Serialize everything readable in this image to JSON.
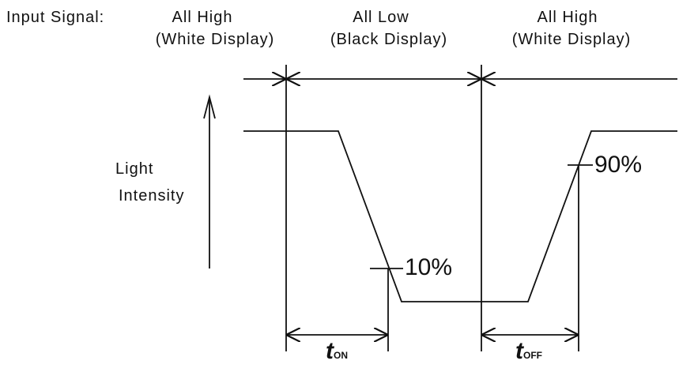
{
  "input_signal_label": "Input Signal:",
  "states": [
    {
      "line1": "All High",
      "line2": "(White Display)"
    },
    {
      "line1": "All Low",
      "line2": "(Black Display)"
    },
    {
      "line1": "All High",
      "line2": "(White Display)"
    }
  ],
  "y_axis_label": {
    "line1": "Light",
    "line2": "Intensity"
  },
  "markers": {
    "ten_percent": "10%",
    "ninety_percent": "90%"
  },
  "timing": {
    "t_on": {
      "main": "t",
      "sub": "ON"
    },
    "t_off": {
      "main": "t",
      "sub": "OFF"
    }
  },
  "colors": {
    "line": "#111111",
    "background": "#ffffff"
  }
}
